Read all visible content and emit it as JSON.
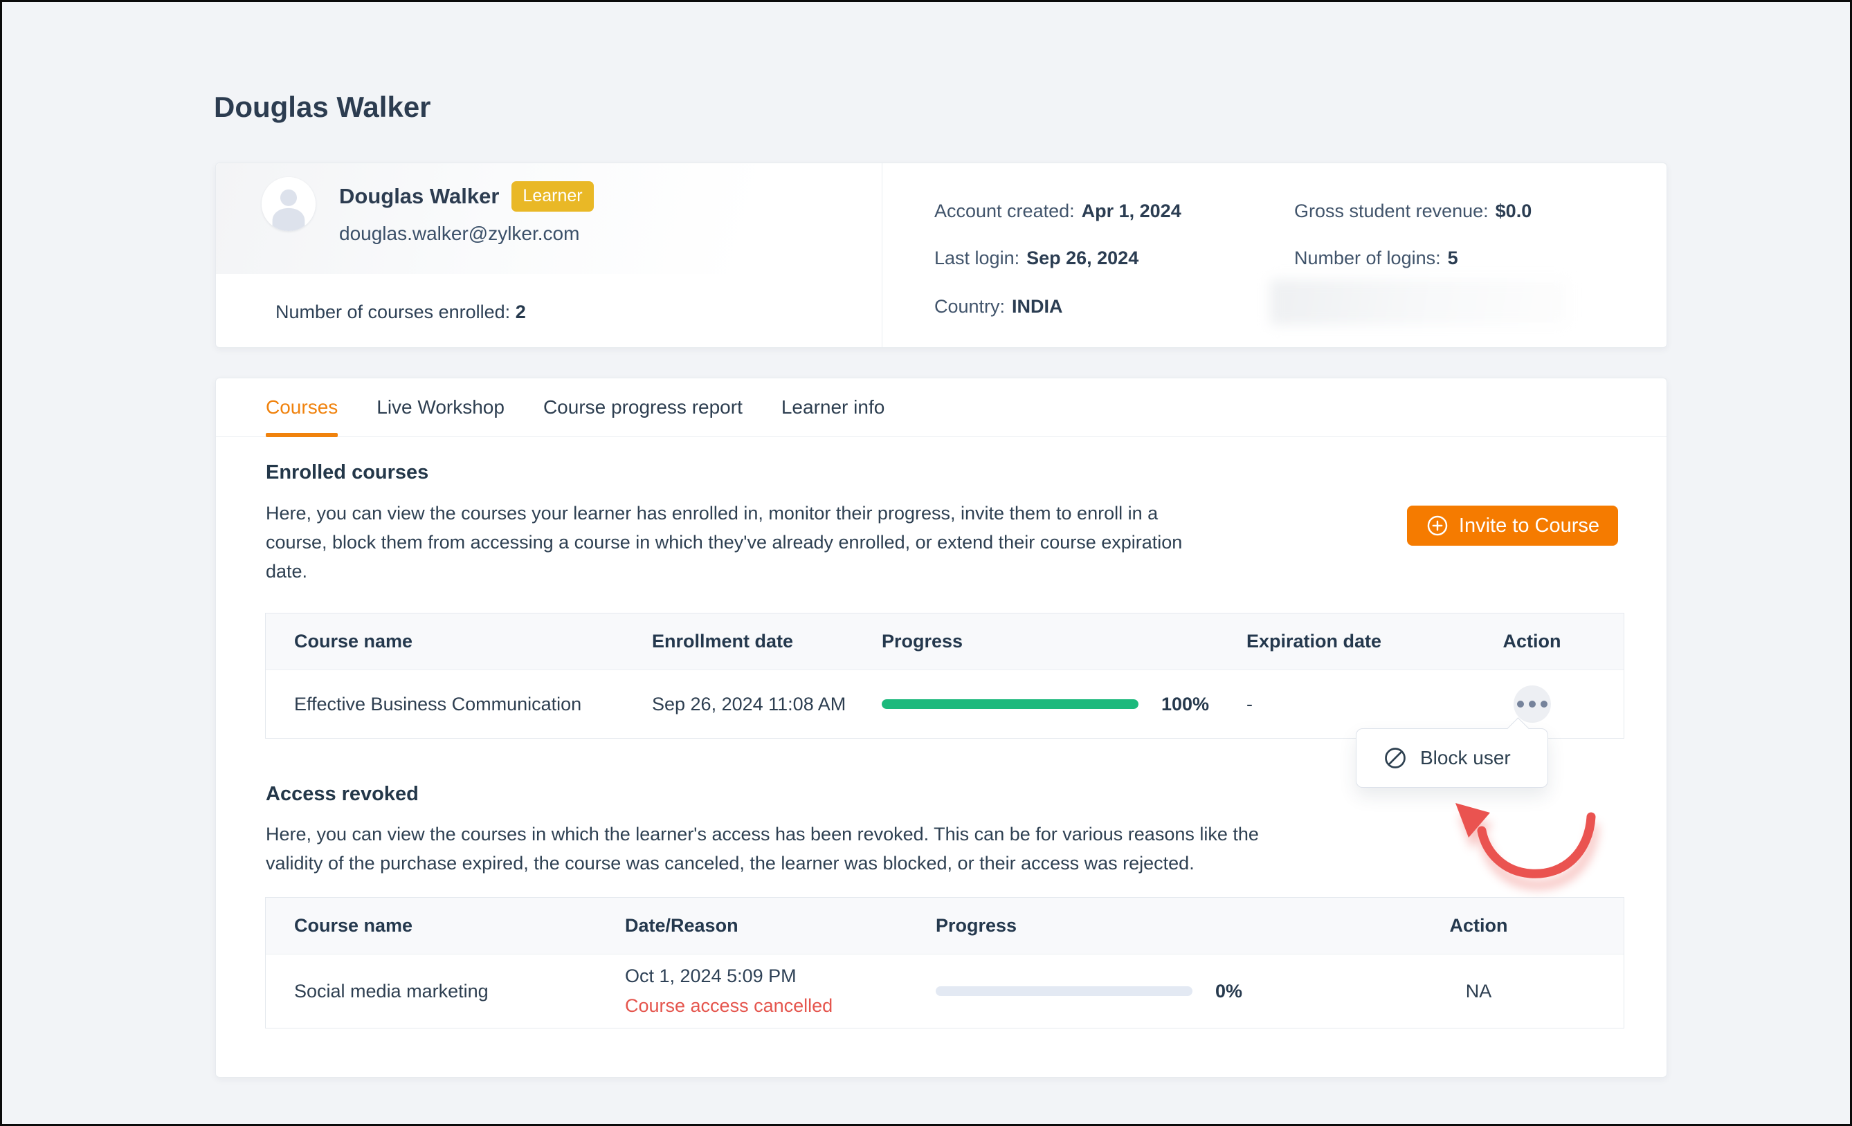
{
  "page": {
    "title": "Douglas Walker"
  },
  "profile": {
    "name": "Douglas Walker",
    "role_badge": "Learner",
    "email": "douglas.walker@zylker.com",
    "courses_enrolled_label": "Number of courses enrolled:",
    "courses_enrolled_value": "2",
    "details": {
      "account_created_label": "Account created:",
      "account_created_value": "Apr 1, 2024",
      "gross_revenue_label": "Gross student revenue:",
      "gross_revenue_value": "$0.0",
      "last_login_label": "Last login:",
      "last_login_value": "Sep 26, 2024",
      "logins_label": "Number of logins:",
      "logins_value": "5",
      "country_label": "Country:",
      "country_value": "INDIA"
    }
  },
  "tabs": {
    "courses": "Courses",
    "live_workshop": "Live Workshop",
    "progress_report": "Course progress report",
    "learner_info": "Learner info"
  },
  "enrolled": {
    "heading": "Enrolled courses",
    "description": "Here, you can view the courses your learner has enrolled in, monitor their progress, invite them to enroll in a course, block them from accessing a course in which they've already enrolled, or extend their course expiration date.",
    "invite_button_label": "Invite to Course",
    "table": {
      "headers": {
        "course": "Course name",
        "enrollment": "Enrollment date",
        "progress": "Progress",
        "expiration": "Expiration date",
        "action": "Action"
      },
      "row": {
        "course": "Effective Business Communication",
        "enrollment": "Sep 26, 2024 11:08 AM",
        "progress_percent": "100%",
        "progress_value": 100,
        "expiration": "-"
      }
    }
  },
  "action_menu": {
    "block_user_label": "Block user"
  },
  "revoked": {
    "heading": "Access revoked",
    "description": "Here, you can view the courses in which the learner's access has been revoked. This can be for various reasons like the validity of the purchase expired, the course was canceled, the learner was blocked, or their access was rejected.",
    "table": {
      "headers": {
        "course": "Course name",
        "date_reason": "Date/Reason",
        "progress": "Progress",
        "action": "Action"
      },
      "row": {
        "course": "Social media marketing",
        "date": "Oct 1, 2024 5:09 PM",
        "reason": "Course access cancelled",
        "progress_percent": "0%",
        "progress_value": 0,
        "action": "NA"
      }
    }
  },
  "colors": {
    "accent_orange": "#f57b00",
    "tab_active_orange": "#f0820d",
    "progress_green": "#1cb97c",
    "badge_yellow": "#e9b826",
    "danger_red": "#e5554d",
    "text_dark": "#2d3e50",
    "page_background": "#f2f4f7"
  }
}
